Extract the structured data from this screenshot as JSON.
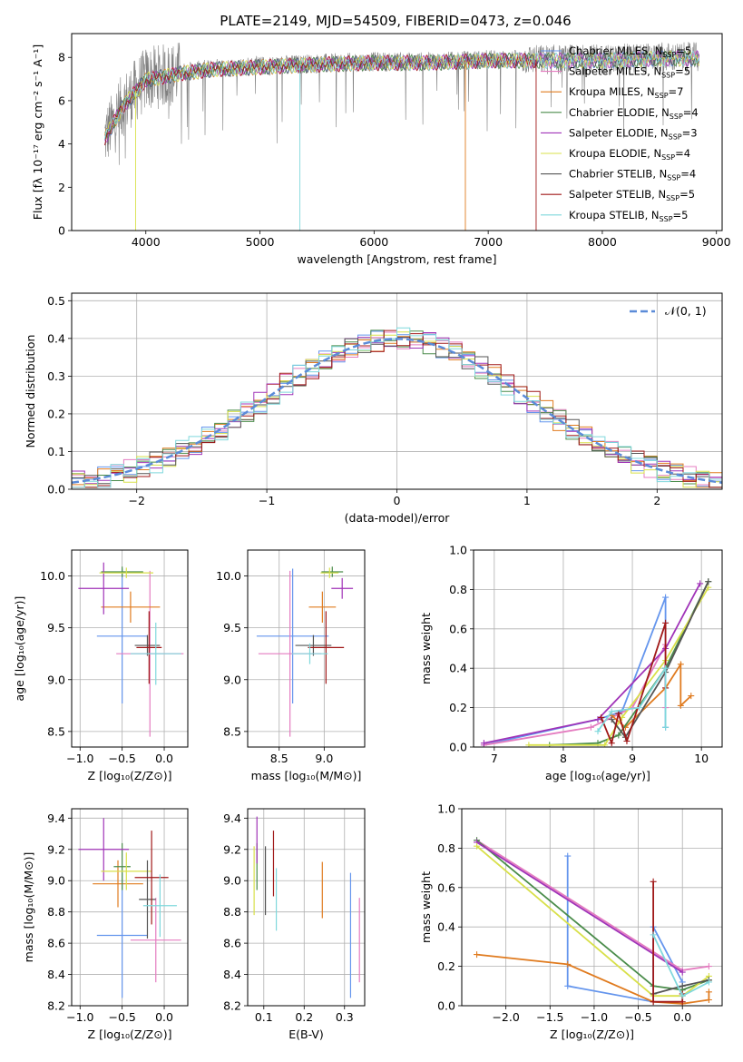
{
  "title": "PLATE=2149, MJD=54509, FIBERID=0473, z=0.046",
  "colors": [
    "#6495ed",
    "#e47cc0",
    "#e07b1f",
    "#4a8c4a",
    "#a033b8",
    "#d8e04a",
    "#555555",
    "#a01818",
    "#7fd8dc"
  ],
  "chart_data": [
    {
      "id": "spectrum",
      "type": "line",
      "xlabel": "wavelength [Angstrom, rest frame]",
      "ylabel": "Flux [fλ 10⁻¹⁷ erg cm⁻² s⁻¹ A⁻¹]",
      "xlim": [
        3350,
        9050
      ],
      "ylim": [
        0,
        9.1
      ],
      "xticks": [
        4000,
        5000,
        6000,
        7000,
        8000,
        9000
      ],
      "yticks": [
        0,
        2,
        4,
        6,
        8
      ],
      "data_range": [
        3640,
        8850
      ],
      "legend_position": "upper-right",
      "data_profile": {
        "x": [
          3640,
          3800,
          4000,
          4300,
          4600,
          5000,
          5400,
          6000,
          6500,
          7000,
          7400,
          8000,
          8500,
          8850
        ],
        "flux": [
          4.3,
          5.8,
          7.0,
          7.3,
          7.5,
          7.6,
          7.7,
          7.8,
          7.8,
          7.9,
          7.9,
          7.9,
          8.0,
          8.0
        ]
      },
      "series": [
        {
          "name": "Chabrier MILES, N_SSP=5",
          "label_main": "Chabrier MILES, N",
          "label_sub": "SSP",
          "label_end": "=5"
        },
        {
          "name": "Salpeter MILES, N_SSP=5",
          "label_main": "Salpeter MILES, N",
          "label_sub": "SSP",
          "label_end": "=5"
        },
        {
          "name": "Kroupa MILES, N_SSP=7",
          "label_main": "Kroupa MILES, N",
          "label_sub": "SSP",
          "label_end": "=7"
        },
        {
          "name": "Chabrier ELODIE, N_SSP=4",
          "label_main": "Chabrier ELODIE, N",
          "label_sub": "SSP",
          "label_end": "=4"
        },
        {
          "name": "Salpeter ELODIE, N_SSP=3",
          "label_main": "Salpeter ELODIE, N",
          "label_sub": "SSP",
          "label_end": "=3"
        },
        {
          "name": "Kroupa ELODIE, N_SSP=4",
          "label_main": "Kroupa ELODIE, N",
          "label_sub": "SSP",
          "label_end": "=4"
        },
        {
          "name": "Chabrier STELIB, N_SSP=4",
          "label_main": "Chabrier STELIB, N",
          "label_sub": "SSP",
          "label_end": "=4"
        },
        {
          "name": "Salpeter STELIB, N_SSP=5",
          "label_main": "Salpeter STELIB, N",
          "label_sub": "SSP",
          "label_end": "=5"
        },
        {
          "name": "Kroupa STELIB, N_SSP=5",
          "label_main": "Kroupa STELIB, N",
          "label_sub": "SSP",
          "label_end": "=5"
        }
      ]
    },
    {
      "id": "residuals",
      "type": "histogram",
      "xlabel": "(data-model)/error",
      "ylabel": "Normed distribution",
      "xlim": [
        -2.5,
        2.5
      ],
      "ylim": [
        0,
        0.52
      ],
      "xticks": [
        -2,
        -1,
        0,
        1,
        2
      ],
      "yticks": [
        0.0,
        0.1,
        0.2,
        0.3,
        0.4,
        0.5
      ],
      "grid": true,
      "bins": 50,
      "legend": "𝒩(0, 1)",
      "legend_position": "upper-right"
    },
    {
      "id": "age-vs-Z",
      "type": "errorbar",
      "xlabel": "Z [log₁₀(Z/Z⊙)]",
      "ylabel": "age  [log₁₀(age/yr)]",
      "xlim": [
        -1.1,
        0.28
      ],
      "ylim": [
        8.35,
        10.25
      ],
      "xticks": [
        -1.0,
        -0.5,
        0.0
      ],
      "yticks": [
        8.5,
        9.0,
        9.5,
        10.0
      ],
      "grid": true,
      "points": [
        {
          "x": -0.5,
          "y": 9.42,
          "xerr": 0.3,
          "yerr": 0.65
        },
        {
          "x": -0.17,
          "y": 9.25,
          "xerr": 0.4,
          "yerr": 0.8
        },
        {
          "x": -0.4,
          "y": 9.7,
          "xerr": 0.35,
          "yerr": 0.15
        },
        {
          "x": -0.5,
          "y": 10.04,
          "xerr": 0.25,
          "yerr": 0.05
        },
        {
          "x": -0.72,
          "y": 9.88,
          "xerr": 0.3,
          "yerr": 0.25
        },
        {
          "x": -0.45,
          "y": 10.03,
          "xerr": 0.32,
          "yerr": 0.05
        },
        {
          "x": -0.2,
          "y": 9.33,
          "xerr": 0.15,
          "yerr": 0.1
        },
        {
          "x": -0.18,
          "y": 9.31,
          "xerr": 0.15,
          "yerr": 0.35
        },
        {
          "x": -0.1,
          "y": 9.25,
          "xerr": 0.3,
          "yerr": 0.3
        }
      ]
    },
    {
      "id": "age-vs-mass",
      "type": "errorbar",
      "xlabel": "mass [log₁₀(M/M⊙)]",
      "ylabel": "",
      "xlim": [
        8.15,
        9.45
      ],
      "ylim": [
        8.35,
        10.25
      ],
      "xticks": [
        8.5,
        9.0
      ],
      "yticks": [
        8.5,
        9.0,
        9.5,
        10.0
      ],
      "grid": true,
      "points": [
        {
          "x": 8.65,
          "y": 9.42,
          "xerr": 0.4,
          "yerr": 0.65
        },
        {
          "x": 8.62,
          "y": 9.25,
          "xerr": 0.35,
          "yerr": 0.8
        },
        {
          "x": 8.98,
          "y": 9.7,
          "xerr": 0.15,
          "yerr": 0.15
        },
        {
          "x": 9.09,
          "y": 10.04,
          "xerr": 0.12,
          "yerr": 0.05
        },
        {
          "x": 9.2,
          "y": 9.88,
          "xerr": 0.12,
          "yerr": 0.1
        },
        {
          "x": 9.06,
          "y": 10.03,
          "xerr": 0.1,
          "yerr": 0.05
        },
        {
          "x": 8.88,
          "y": 9.33,
          "xerr": 0.2,
          "yerr": 0.1
        },
        {
          "x": 9.02,
          "y": 9.31,
          "xerr": 0.2,
          "yerr": 0.35
        },
        {
          "x": 8.84,
          "y": 9.25,
          "xerr": 0.2,
          "yerr": 0.1
        }
      ]
    },
    {
      "id": "mass-weight-vs-age",
      "type": "line",
      "xlabel": "age  [log₁₀(age/yr)]",
      "ylabel": "mass weight",
      "xlim": [
        6.7,
        10.3
      ],
      "ylim": [
        0,
        1.0
      ],
      "xticks": [
        7,
        8,
        9,
        10
      ],
      "yticks": [
        0.0,
        0.2,
        0.4,
        0.6,
        0.8,
        1.0
      ],
      "grid": true,
      "series": [
        [
          [
            6.85,
            0.01
          ],
          [
            8.5,
            0.14
          ],
          [
            8.85,
            0.18
          ],
          [
            9.48,
            0.76
          ],
          [
            9.48,
            0.1
          ]
        ],
        [
          [
            6.85,
            0.01
          ],
          [
            8.4,
            0.1
          ],
          [
            9.0,
            0.2
          ],
          [
            9.48,
            0.52
          ],
          [
            9.48,
            0.2
          ]
        ],
        [
          [
            8.7,
            0.16
          ],
          [
            8.9,
            0.1
          ],
          [
            9.48,
            0.3
          ],
          [
            9.7,
            0.42
          ],
          [
            9.7,
            0.21
          ],
          [
            9.85,
            0.26
          ]
        ],
        [
          [
            7.8,
            0.01
          ],
          [
            8.5,
            0.02
          ],
          [
            8.8,
            0.06
          ],
          [
            9.48,
            0.4
          ],
          [
            10.1,
            0.84
          ]
        ],
        [
          [
            6.85,
            0.02
          ],
          [
            8.5,
            0.14
          ],
          [
            9.48,
            0.5
          ],
          [
            9.98,
            0.83
          ]
        ],
        [
          [
            7.5,
            0.01
          ],
          [
            8.6,
            0.01
          ],
          [
            8.85,
            0.15
          ],
          [
            9.48,
            0.44
          ],
          [
            10.1,
            0.81
          ]
        ],
        [
          [
            8.7,
            0.14
          ],
          [
            8.9,
            0.05
          ],
          [
            9.48,
            0.38
          ],
          [
            10.1,
            0.84
          ]
        ],
        [
          [
            8.55,
            0.15
          ],
          [
            8.7,
            0.02
          ],
          [
            8.8,
            0.17
          ],
          [
            8.92,
            0.03
          ],
          [
            9.48,
            0.63
          ],
          [
            9.48,
            0.3
          ]
        ],
        [
          [
            8.5,
            0.08
          ],
          [
            8.7,
            0.18
          ],
          [
            9.1,
            0.2
          ],
          [
            9.48,
            0.4
          ],
          [
            9.48,
            0.1
          ]
        ]
      ]
    },
    {
      "id": "mass-vs-Z",
      "type": "errorbar",
      "xlabel": "Z [log₁₀(Z/Z⊙)]",
      "ylabel": "mass [log₁₀(M/M⊙)]",
      "xlim": [
        -1.1,
        0.28
      ],
      "ylim": [
        8.2,
        9.46
      ],
      "xticks": [
        -1.0,
        -0.5,
        0.0
      ],
      "yticks": [
        8.2,
        8.4,
        8.6,
        8.8,
        9.0,
        9.2,
        9.4
      ],
      "grid": true,
      "points": [
        {
          "x": -0.5,
          "y": 8.65,
          "xerr": 0.3,
          "yerr": 0.4
        },
        {
          "x": -0.1,
          "y": 8.62,
          "xerr": 0.3,
          "yerr": 0.27
        },
        {
          "x": -0.55,
          "y": 8.98,
          "xerr": 0.3,
          "yerr": 0.15
        },
        {
          "x": -0.5,
          "y": 9.09,
          "xerr": 0.1,
          "yerr": 0.15
        },
        {
          "x": -0.72,
          "y": 9.2,
          "xerr": 0.3,
          "yerr": 0.2
        },
        {
          "x": -0.45,
          "y": 9.06,
          "xerr": 0.3,
          "yerr": 0.12
        },
        {
          "x": -0.2,
          "y": 8.88,
          "xerr": 0.1,
          "yerr": 0.25
        },
        {
          "x": -0.15,
          "y": 9.02,
          "xerr": 0.2,
          "yerr": 0.3
        },
        {
          "x": -0.05,
          "y": 8.84,
          "xerr": 0.2,
          "yerr": 0.2
        }
      ]
    },
    {
      "id": "mass-vs-EBV",
      "type": "errorbar",
      "xlabel": "E(B-V)",
      "ylabel": "",
      "xlim": [
        0.06,
        0.35
      ],
      "ylim": [
        8.2,
        9.46
      ],
      "xticks": [
        0.1,
        0.2,
        0.3
      ],
      "yticks": [
        8.2,
        8.4,
        8.6,
        8.8,
        9.0,
        9.2,
        9.4
      ],
      "grid": true,
      "points": [
        {
          "x": 0.315,
          "y": 8.65,
          "xerr": 0,
          "yerr": 0.4
        },
        {
          "x": 0.337,
          "y": 8.62,
          "xerr": 0,
          "yerr": 0.27
        },
        {
          "x": 0.245,
          "y": 8.94,
          "xerr": 0,
          "yerr": 0.18
        },
        {
          "x": 0.083,
          "y": 9.09,
          "xerr": 0,
          "yerr": 0.15
        },
        {
          "x": 0.083,
          "y": 9.26,
          "xerr": 0,
          "yerr": 0.15
        },
        {
          "x": 0.076,
          "y": 9.0,
          "xerr": 0,
          "yerr": 0.22
        },
        {
          "x": 0.104,
          "y": 9.0,
          "xerr": 0,
          "yerr": 0.22
        },
        {
          "x": 0.124,
          "y": 9.11,
          "xerr": 0,
          "yerr": 0.21
        },
        {
          "x": 0.131,
          "y": 8.88,
          "xerr": 0,
          "yerr": 0.2
        }
      ]
    },
    {
      "id": "mass-weight-vs-Z",
      "type": "line",
      "xlabel": "Z [log₁₀(Z/Z⊙)]",
      "ylabel": "mass weight",
      "xlim": [
        -2.5,
        0.45
      ],
      "ylim": [
        0,
        1.0
      ],
      "xticks": [
        -2.0,
        -1.5,
        -1.0,
        -0.5,
        0.0
      ],
      "yticks": [
        0.0,
        0.2,
        0.4,
        0.6,
        0.8,
        1.0
      ],
      "grid": true,
      "series": [
        [
          [
            -1.3,
            0.76
          ],
          [
            -1.3,
            0.1
          ],
          [
            -0.33,
            0.02
          ],
          [
            -0.33,
            0.4
          ],
          [
            0.0,
            0.12
          ]
        ],
        [
          [
            -2.33,
            0.84
          ],
          [
            0.0,
            0.18
          ],
          [
            0.3,
            0.2
          ]
        ],
        [
          [
            -2.33,
            0.26
          ],
          [
            -1.3,
            0.21
          ],
          [
            -0.33,
            0.02
          ],
          [
            0.0,
            0.01
          ],
          [
            0.3,
            0.03
          ],
          [
            0.3,
            0.07
          ]
        ],
        [
          [
            -2.33,
            0.84
          ],
          [
            -0.33,
            0.1
          ],
          [
            0.0,
            0.08
          ],
          [
            0.3,
            0.13
          ]
        ],
        [
          [
            -2.33,
            0.83
          ],
          [
            0.0,
            0.17
          ]
        ],
        [
          [
            -2.33,
            0.81
          ],
          [
            -0.33,
            0.05
          ],
          [
            0.0,
            0.05
          ],
          [
            0.3,
            0.15
          ]
        ],
        [
          [
            -0.33,
            0.06
          ],
          [
            0.0,
            0.1
          ],
          [
            0.3,
            0.13
          ]
        ],
        [
          [
            -0.33,
            0.63
          ],
          [
            -0.33,
            0.02
          ],
          [
            0.0,
            0.02
          ],
          [
            0.0,
            0.06
          ]
        ],
        [
          [
            -0.33,
            0.36
          ],
          [
            0.0,
            0.05
          ],
          [
            0.3,
            0.12
          ]
        ]
      ]
    }
  ]
}
